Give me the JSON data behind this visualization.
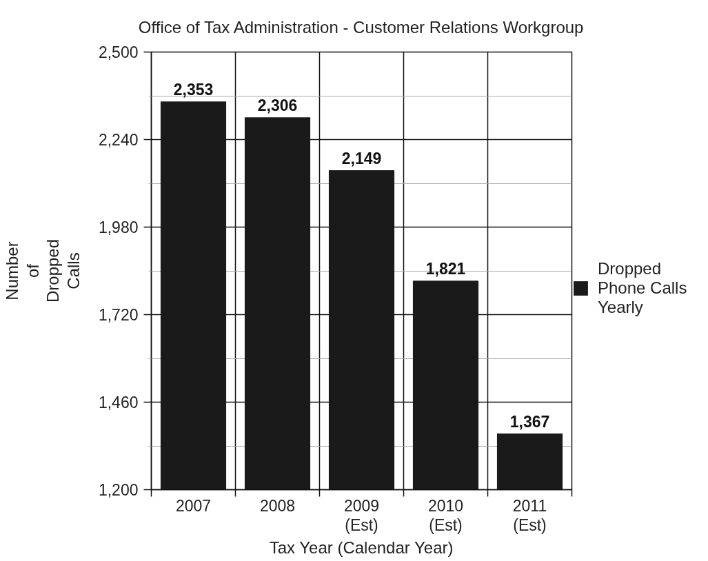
{
  "chart_data": {
    "type": "bar",
    "title": "Office of Tax Administration - Customer Relations Workgroup",
    "xlabel": "Tax Year (Calendar Year)",
    "ylabel": "Number of Dropped Calls",
    "categories": [
      "2007",
      "2008",
      "2009 (Est)",
      "2010 (Est)",
      "2011 (Est)"
    ],
    "series": [
      {
        "name": "Dropped Phone Calls Yearly",
        "color": "#1a1a1a",
        "values": [
          2353,
          2306,
          2149,
          1821,
          1367
        ],
        "value_labels": [
          "2,353",
          "2,306",
          "2,149",
          "1,821",
          "1,367"
        ]
      }
    ],
    "ylim": [
      1200,
      2500
    ],
    "yticks": [
      {
        "value": 1200,
        "label": "1,200"
      },
      {
        "value": 1330,
        "label": null
      },
      {
        "value": 1460,
        "label": "1,460"
      },
      {
        "value": 1590,
        "label": null
      },
      {
        "value": 1720,
        "label": "1,720"
      },
      {
        "value": 1850,
        "label": null
      },
      {
        "value": 1980,
        "label": "1,980"
      },
      {
        "value": 2110,
        "label": null
      },
      {
        "value": 2240,
        "label": "2,240"
      },
      {
        "value": 2370,
        "label": null
      },
      {
        "value": 2500,
        "label": "2,500"
      }
    ],
    "grid": true,
    "legend": "right"
  }
}
